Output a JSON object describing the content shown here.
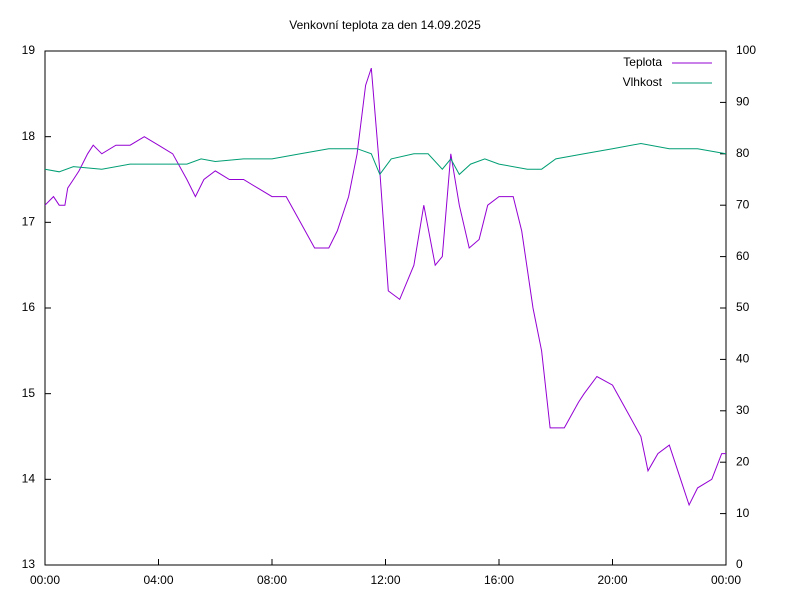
{
  "chart_data": {
    "type": "line",
    "title": "Venkovní teplota za den 14.09.2025",
    "xlim": [
      0,
      24
    ],
    "xticks": [
      {
        "value": 0,
        "label": "00:00"
      },
      {
        "value": 4,
        "label": "04:00"
      },
      {
        "value": 8,
        "label": "08:00"
      },
      {
        "value": 12,
        "label": "12:00"
      },
      {
        "value": 16,
        "label": "16:00"
      },
      {
        "value": 20,
        "label": "20:00"
      },
      {
        "value": 24,
        "label": "00:00"
      }
    ],
    "ylim": [
      13,
      19
    ],
    "yticks": [
      13,
      14,
      15,
      16,
      17,
      18,
      19
    ],
    "y2lim": [
      0,
      100
    ],
    "y2ticks": [
      0,
      10,
      20,
      30,
      40,
      50,
      60,
      70,
      80,
      90,
      100
    ],
    "legend": "top-right",
    "series": [
      {
        "name": "Teplota",
        "color": "#9400d3",
        "axis": "y",
        "x": [
          0,
          0.3,
          0.5,
          0.7,
          0.8,
          1.0,
          1.2,
          1.5,
          1.7,
          2.0,
          2.5,
          3.0,
          3.5,
          4.0,
          4.5,
          5.0,
          5.3,
          5.6,
          6.0,
          6.5,
          7.0,
          7.5,
          8.0,
          8.5,
          9.0,
          9.5,
          10.0,
          10.3,
          10.7,
          11.0,
          11.3,
          11.5,
          11.8,
          12.1,
          12.5,
          13.0,
          13.35,
          13.75,
          14.0,
          14.3,
          14.6,
          14.95,
          15.3,
          15.6,
          16.0,
          16.5,
          16.8,
          17.2,
          17.5,
          17.8,
          18.3,
          18.8,
          19.0,
          19.45,
          20.0,
          20.5,
          21.0,
          21.25,
          21.6,
          22.0,
          22.4,
          22.7,
          23.0,
          23.5,
          23.85,
          24.0
        ],
        "values": [
          17.2,
          17.3,
          17.2,
          17.2,
          17.4,
          17.5,
          17.6,
          17.8,
          17.9,
          17.8,
          17.9,
          17.9,
          18.0,
          17.9,
          17.8,
          17.5,
          17.3,
          17.5,
          17.6,
          17.5,
          17.5,
          17.4,
          17.3,
          17.3,
          17.0,
          16.7,
          16.7,
          16.9,
          17.3,
          17.8,
          18.6,
          18.8,
          17.6,
          16.2,
          16.1,
          16.5,
          17.2,
          16.5,
          16.6,
          17.8,
          17.2,
          16.7,
          16.8,
          17.2,
          17.3,
          17.3,
          16.9,
          16.0,
          15.5,
          14.6,
          14.6,
          14.9,
          15.0,
          15.2,
          15.1,
          14.8,
          14.5,
          14.1,
          14.3,
          14.4,
          14.0,
          13.7,
          13.9,
          14.0,
          14.3,
          14.3
        ]
      },
      {
        "name": "Vlhkost",
        "color": "#009e73",
        "axis": "y2",
        "x": [
          0,
          0.5,
          1,
          2,
          3,
          4,
          5,
          5.5,
          6,
          7,
          8,
          9,
          10,
          11,
          11.5,
          11.8,
          12.2,
          13,
          13.5,
          14,
          14.3,
          14.6,
          15,
          15.5,
          16,
          17,
          17.5,
          18,
          19,
          20,
          21,
          22,
          23,
          24
        ],
        "values": [
          77,
          76.5,
          77.5,
          77,
          78,
          78,
          78,
          79,
          78.5,
          79,
          79,
          80,
          81,
          81,
          80,
          76,
          79,
          80,
          80,
          77,
          79,
          76,
          78,
          79,
          78,
          77,
          77,
          79,
          80,
          81,
          82,
          81,
          81,
          80
        ]
      }
    ]
  }
}
